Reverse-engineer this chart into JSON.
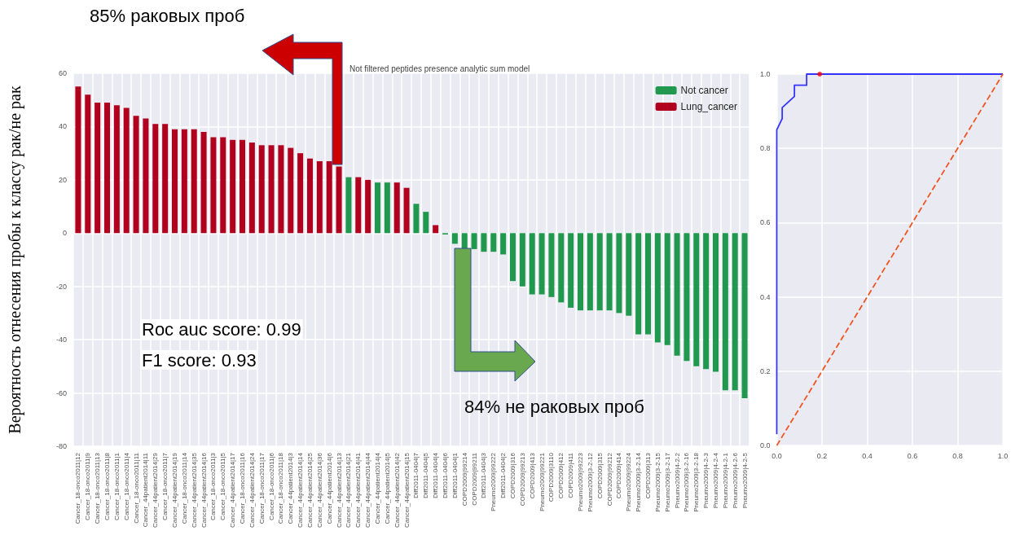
{
  "chart_data": [
    {
      "type": "bar",
      "title": "Not filtered peptides presence analytic sum model",
      "ylabel": "Вероятность отнесения пробы к классу рак/не рак",
      "annotations": [
        "85% раковых проб",
        "Roc auc score: 0.99",
        "F1 score: 0.93",
        "84% не раковых проб"
      ],
      "categories": [
        "Cancer_18-onco2011|12",
        "Cancer_18-onco2011|9",
        "Cancer_18-onco2011|13",
        "Cancer_18-onco2011|8",
        "Cancer_18-onco2011|1",
        "Cancer_18-onco2011|4",
        "Cancer_18-onco2011|11",
        "Cancer_44patient2014|11",
        "Cancer_44patient2014|29",
        "Cancer_18-onco2011|7",
        "Cancer_44patient2014|19",
        "Cancer_18-onco2011|14",
        "Cancer_44patient2014|35",
        "Cancer_44patient2014|16",
        "Cancer_18-onco2011|3",
        "Cancer_18-onco2011|5",
        "Cancer_44patient2014|17",
        "Cancer_18-onco2011|16",
        "Cancer_44patient2014|24",
        "Cancer_18-onco2011|17",
        "Cancer_18-onco2011|6",
        "Cancer_18-onco2011|18",
        "Cancer_44patient2014|3",
        "Cancer_44patient2014|14",
        "Cancer_44patient2014|25",
        "Cancer_44patient2014|36",
        "Cancer_44patient2014|6",
        "Cancer_44patient2014|13",
        "Cancer_44patient2014|21",
        "Cancer_44patient2014|41",
        "Cancer_44patient2014|44",
        "Cancer_44patient2014|4",
        "Cancer_44patient2014|5",
        "Cancer_44patient2014|42",
        "Cancer_44patient2014|15",
        "Diff2011-0404|7",
        "Diff2011-0404|5",
        "Diff2011-0404|4",
        "Diff2011-0404|6",
        "Diff2011-0404|1",
        "COPD2009|99214",
        "COPD2009|99211",
        "Diff2011-0404|3",
        "Pneumo2009|99222",
        "Diff2011-0404|2",
        "COPD2009|316",
        "COPD2009|99213",
        "COPD2009|413",
        "Pneumo2009|99221",
        "COPD2009|3110",
        "COPD2009|412",
        "COPD2009|411",
        "Pneumo2009|99223",
        "Pneumo2009|3-2-12",
        "COPD2009|315",
        "COPD2009|99212",
        "COPD2009|414",
        "Pneumo2009|99224",
        "Pneumo2009|3-2-14",
        "COPD2009|313",
        "Pneumo2009|3-2-15",
        "Pneumo2009|3-2-17",
        "Pneumo2009|4-2-2",
        "Pneumo2009|3-2-16",
        "Pneumo2009|3-2-18",
        "Pneumo2009|4-2-3",
        "Pneumo2009|4-2-4",
        "Pneumo2009|4-2-1",
        "Pneumo2009|4-2-6",
        "Pneumo2009|4-2-5"
      ],
      "series": [
        {
          "name": "Not cancer",
          "color": "#20994f",
          "values": [
            null,
            null,
            null,
            null,
            null,
            null,
            null,
            null,
            null,
            null,
            null,
            null,
            null,
            null,
            null,
            null,
            null,
            null,
            null,
            null,
            null,
            null,
            null,
            null,
            null,
            null,
            null,
            null,
            21,
            null,
            null,
            19,
            19,
            null,
            null,
            11,
            8,
            null,
            -0.5,
            -4,
            -6,
            -6,
            -7,
            -7,
            -8,
            -18,
            -20,
            -23,
            -23,
            -24,
            -26,
            -28,
            -29,
            -29,
            -29,
            -29,
            -30,
            -31,
            -38,
            -38,
            -41,
            -42,
            -46,
            -48,
            -50,
            -51,
            -52,
            -59,
            -59,
            -62
          ]
        },
        {
          "name": "Lung_cancer",
          "color": "#b0001e",
          "values": [
            55,
            52,
            49,
            49,
            48,
            47,
            44,
            43,
            41,
            41,
            39,
            39,
            39,
            38,
            36,
            36,
            35,
            35,
            34,
            33,
            33,
            33,
            32,
            30,
            28,
            27,
            27,
            25,
            null,
            21,
            20,
            null,
            null,
            19,
            17,
            null,
            null,
            3,
            null,
            null,
            null,
            null,
            null,
            null,
            null,
            null,
            null,
            null,
            null,
            null,
            null,
            null,
            null,
            null,
            null,
            null,
            null,
            null,
            null,
            null,
            null,
            null,
            null,
            null,
            null,
            null,
            null,
            null,
            null,
            null
          ]
        }
      ],
      "ylim": [
        -80,
        60
      ],
      "yticks": [
        -80,
        -60,
        -40,
        -20,
        0,
        20,
        40,
        60
      ],
      "grid": true,
      "legend": "top right"
    },
    {
      "type": "line",
      "xlim": [
        0,
        1
      ],
      "ylim": [
        0,
        1
      ],
      "xticks": [
        {
          "value": 0,
          "label": "0.0"
        },
        {
          "value": 0.2,
          "label": "0.2"
        },
        {
          "value": 0.4,
          "label": "0.4"
        },
        {
          "value": 0.6,
          "label": "0.6"
        },
        {
          "value": 0.8,
          "label": "0.8"
        },
        {
          "value": 1,
          "label": "1.0"
        }
      ],
      "yticks": [
        {
          "value": 0,
          "label": "0.0"
        },
        {
          "value": 0.2,
          "label": "0.2"
        },
        {
          "value": 0.4,
          "label": "0.4"
        },
        {
          "value": 0.6,
          "label": "0.6"
        },
        {
          "value": 0.8,
          "label": "0.8"
        },
        {
          "value": 1,
          "label": "1.0"
        }
      ],
      "series": [
        {
          "color": "#3333ff",
          "line_style": "solid",
          "x": [
            0,
            0,
            0.024,
            0.024,
            0.078,
            0.078,
            0.132,
            0.132,
            1
          ],
          "values": [
            0.03,
            0.85,
            0.88,
            0.91,
            0.94,
            0.97,
            0.97,
            1,
            1
          ]
        },
        {
          "color": "#ee5522",
          "line_style": "dashed",
          "x": [
            0,
            1
          ],
          "values": [
            0,
            1
          ]
        },
        {
          "type": "scatter",
          "marker": "circle",
          "color": "#ff0000",
          "x": [
            0.19
          ],
          "values": [
            1
          ]
        }
      ],
      "grid": true,
      "legend": false
    }
  ]
}
